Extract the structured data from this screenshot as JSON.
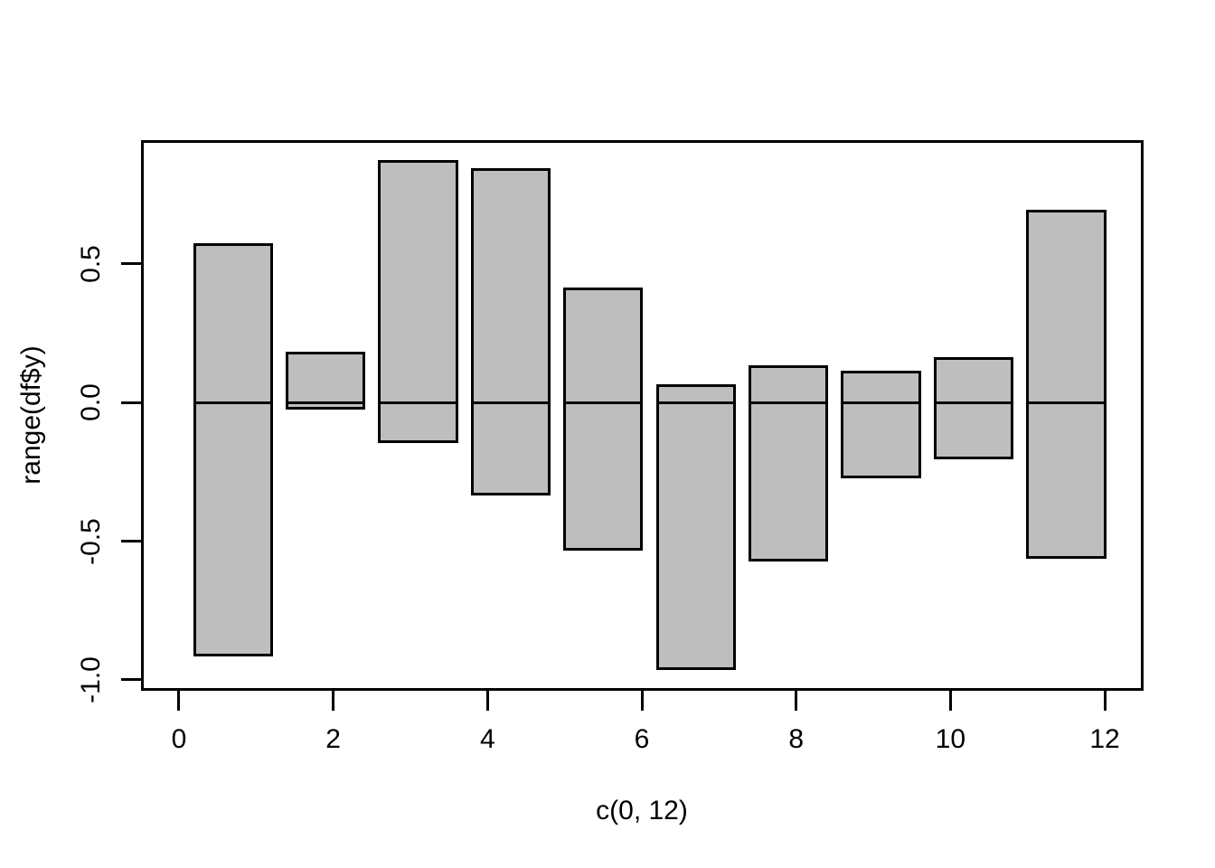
{
  "chart_data": {
    "type": "bar",
    "title": "",
    "xlabel": "c(0, 12)",
    "ylabel": "range(df$y)",
    "x_ticks": [
      0,
      2,
      4,
      6,
      8,
      10,
      12
    ],
    "x_tick_labels": [
      "0",
      "2",
      "4",
      "6",
      "8",
      "10",
      "12"
    ],
    "y_ticks": [
      -1.0,
      -0.5,
      0.0,
      0.5
    ],
    "y_tick_labels": [
      "-1.0",
      "-0.5",
      "0.0",
      "0.5"
    ],
    "xlim": [
      -0.48,
      12.48
    ],
    "ylim": [
      -1.0332,
      0.9432
    ],
    "grid": false,
    "legend": "none",
    "baseline": 0,
    "bars": [
      {
        "x0": 0.2,
        "x1": 1.2,
        "ymin": -0.91,
        "ymax": 0.57
      },
      {
        "x0": 1.4,
        "x1": 2.4,
        "ymin": -0.02,
        "ymax": 0.18
      },
      {
        "x0": 2.6,
        "x1": 3.6,
        "ymin": -0.14,
        "ymax": 0.87
      },
      {
        "x0": 3.8,
        "x1": 4.8,
        "ymin": -0.33,
        "ymax": 0.84
      },
      {
        "x0": 5.0,
        "x1": 6.0,
        "ymin": -0.53,
        "ymax": 0.41
      },
      {
        "x0": 6.2,
        "x1": 7.2,
        "ymin": -0.96,
        "ymax": 0.06
      },
      {
        "x0": 7.4,
        "x1": 8.4,
        "ymin": -0.57,
        "ymax": 0.13
      },
      {
        "x0": 8.6,
        "x1": 9.6,
        "ymin": -0.27,
        "ymax": 0.11
      },
      {
        "x0": 9.8,
        "x1": 10.8,
        "ymin": -0.2,
        "ymax": 0.16
      },
      {
        "x0": 11.0,
        "x1": 12.0,
        "ymin": -0.56,
        "ymax": 0.69
      }
    ],
    "colors": {
      "background": "#ffffff",
      "bar_fill": "#bebebe",
      "bar_border": "#000000",
      "axis": "#000000",
      "text": "#000000"
    }
  }
}
